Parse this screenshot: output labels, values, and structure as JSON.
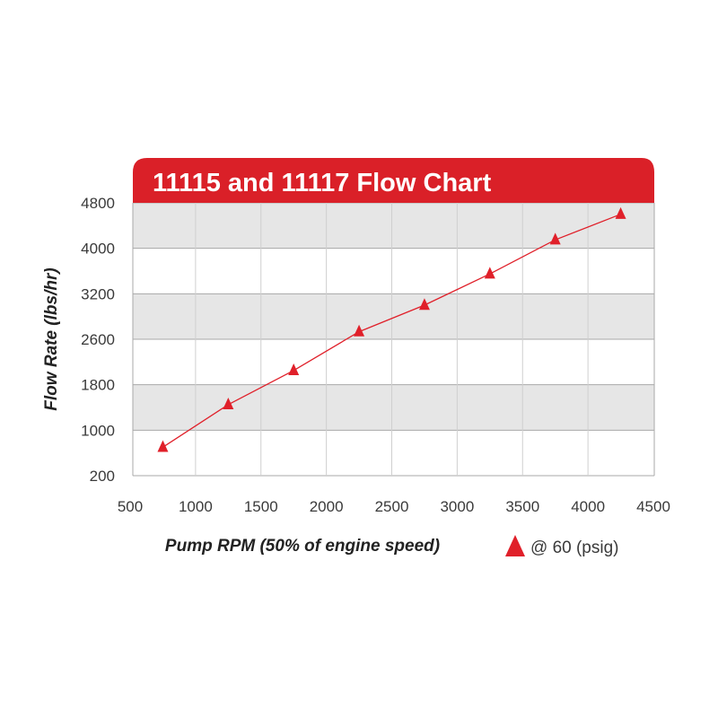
{
  "chart_data": {
    "type": "line",
    "title": "11115 and 11117 Flow Chart",
    "xlabel": "Pump RPM (50% of engine speed)",
    "ylabel": "Flow Rate (lbs/hr)",
    "x_ticks": [
      "500",
      "1000",
      "1500",
      "2000",
      "2500",
      "3000",
      "3500",
      "4000",
      "4500"
    ],
    "y_ticks": [
      "200",
      "1000",
      "1800",
      "2600",
      "3200",
      "4000",
      "4800"
    ],
    "series": [
      {
        "name": "@ 60 (psig)",
        "marker": "triangle",
        "color": "#e0202a",
        "x": [
          750,
          1250,
          1750,
          2250,
          2750,
          3250,
          3750,
          4250
        ],
        "y": [
          700,
          1450,
          2050,
          2700,
          3050,
          3550,
          4150,
          4600
        ]
      }
    ],
    "legend": {
      "position": "bottom-right",
      "label": "@ 60 (psig)"
    },
    "grid": true
  },
  "colors": {
    "accent": "#da2028",
    "band": "#e6e6e6",
    "grid": "#a8a8a8"
  }
}
